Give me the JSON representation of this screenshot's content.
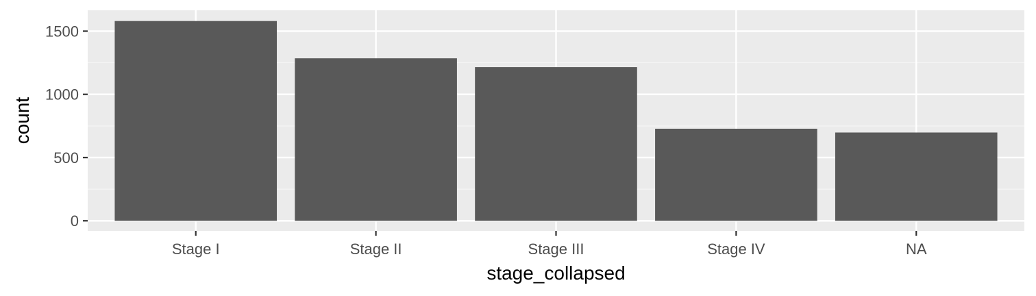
{
  "chart_data": {
    "type": "bar",
    "categories": [
      "Stage I",
      "Stage II",
      "Stage III",
      "Stage IV",
      "NA"
    ],
    "values": [
      1580,
      1285,
      1215,
      728,
      698
    ],
    "xlabel": "stage_collapsed",
    "ylabel": "count",
    "ylim": [
      0,
      1620
    ],
    "yticks": [
      0,
      500,
      1000,
      1500
    ],
    "grid": true,
    "legend": "none",
    "colors": {
      "bar": "#595959",
      "panel": "#ebebeb",
      "grid_major": "#ffffff",
      "grid_minor": "#f5f5f5",
      "tick_text": "#4d4d4d",
      "tick_mark": "#333333",
      "title_text": "#000000"
    }
  }
}
